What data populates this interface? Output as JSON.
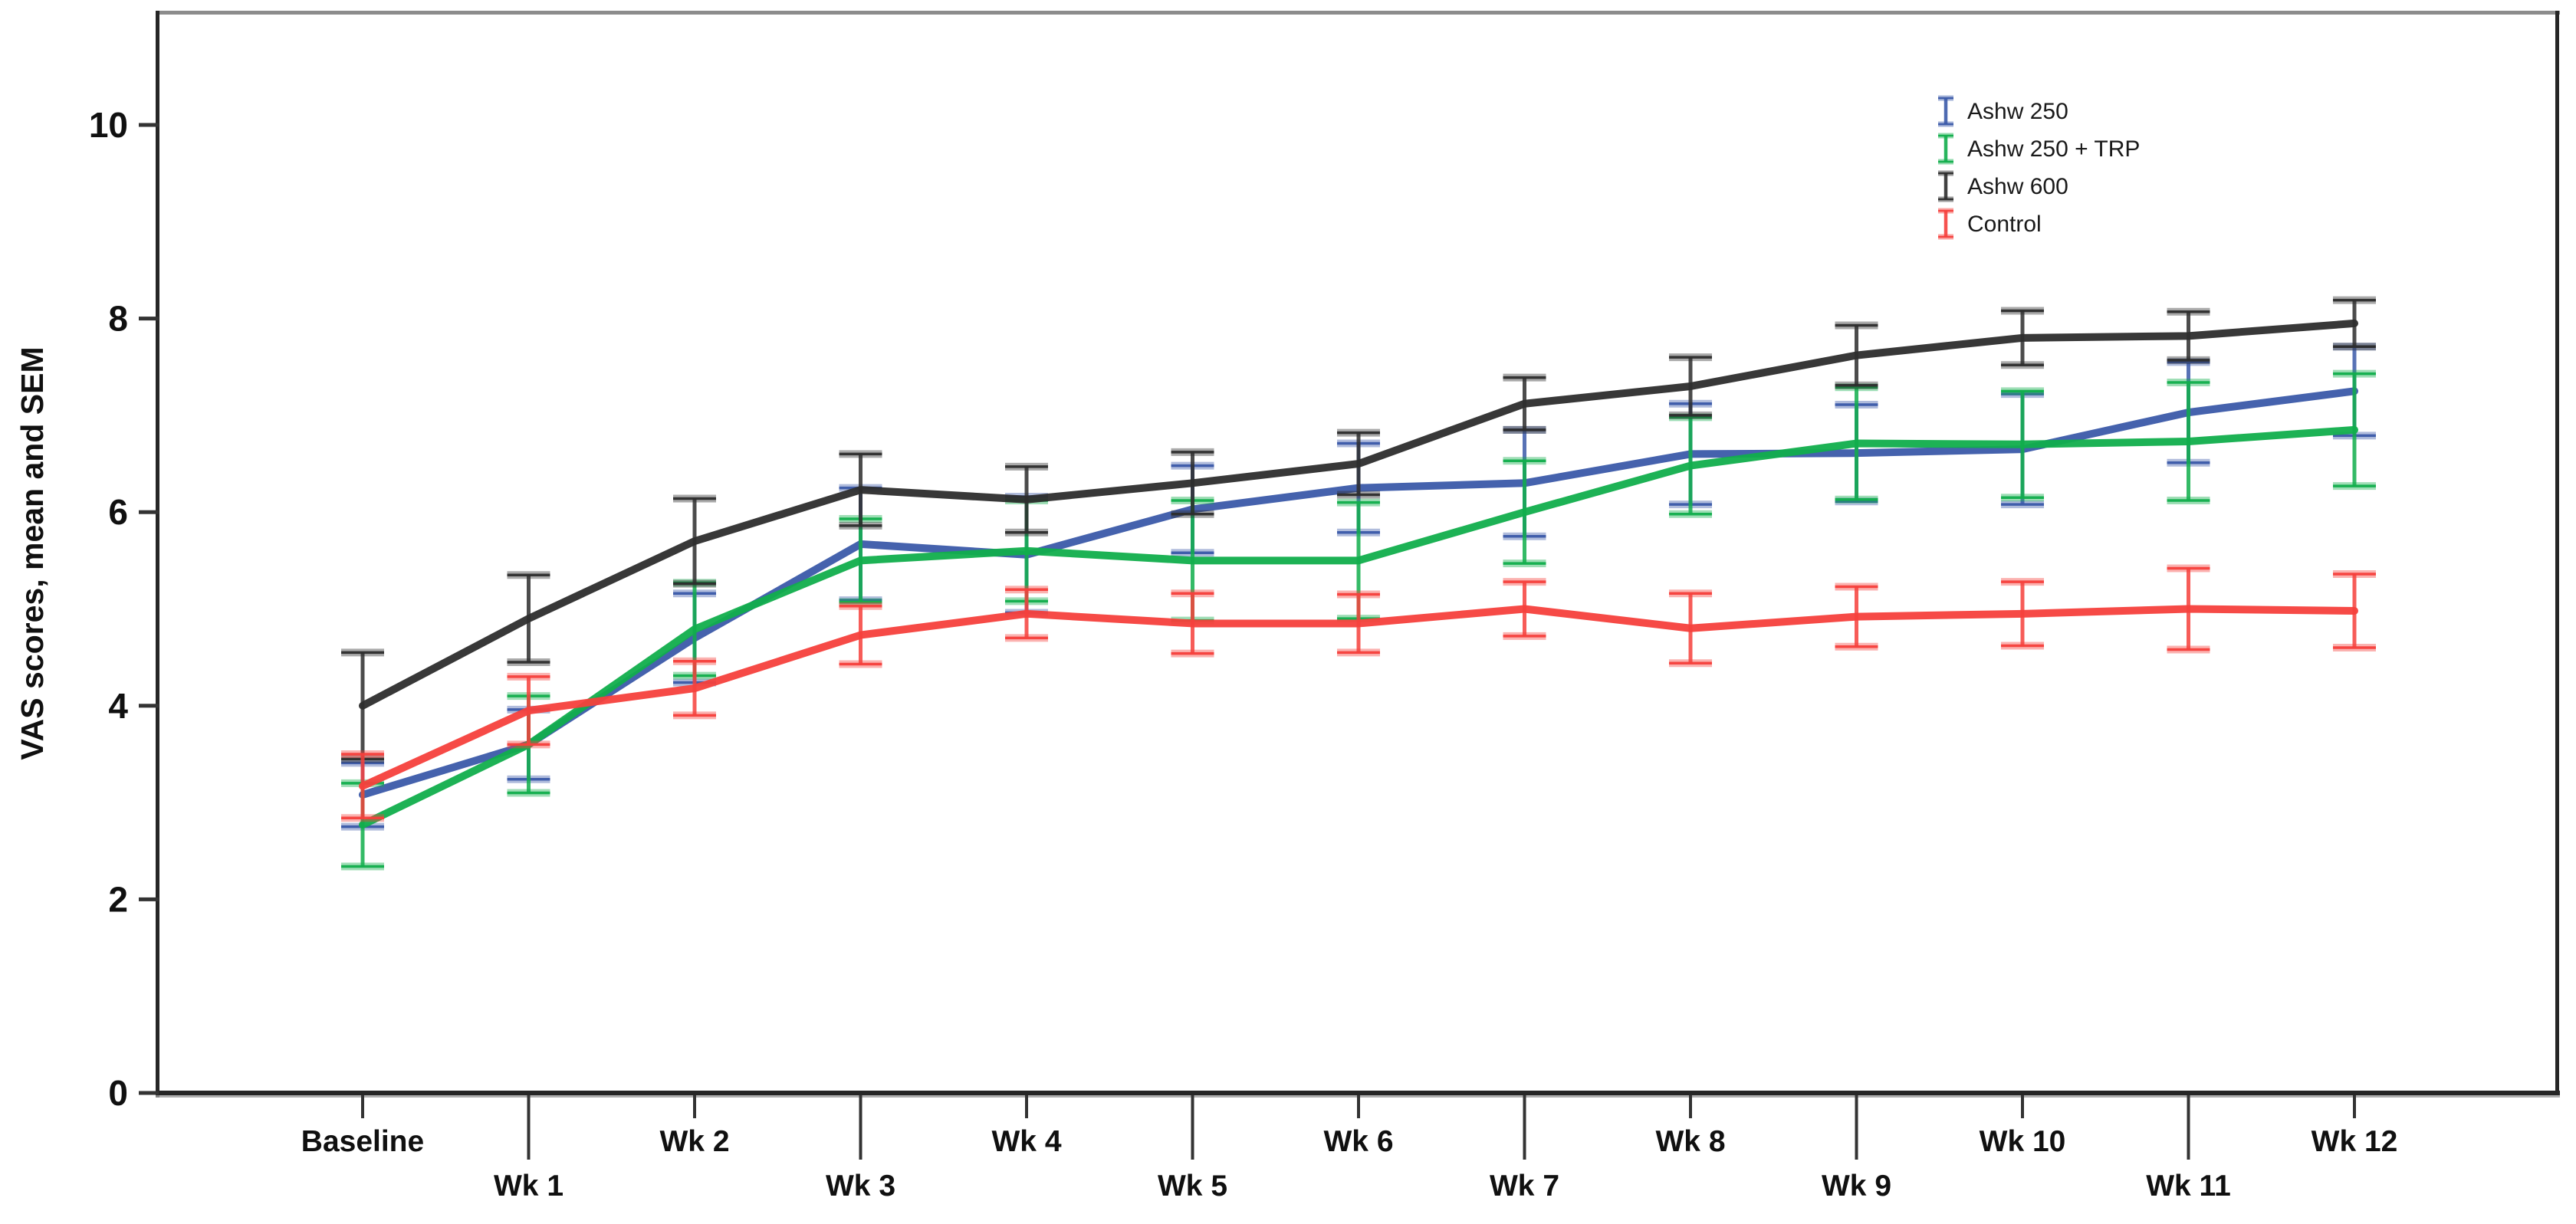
{
  "chart_data": {
    "type": "line",
    "title": "",
    "xlabel": "",
    "ylabel": "VAS scores, mean and SEM",
    "error_bar_type": "SEM",
    "legend_position": "top-right-inside",
    "grid": false,
    "ylim": [
      0,
      11.2
    ],
    "yticks": [
      0,
      2,
      4,
      6,
      8,
      10
    ],
    "ytick_labels": [
      "0",
      "2",
      "4",
      "6",
      "8",
      "10"
    ],
    "categories": [
      "Baseline",
      "Wk 1",
      "Wk 2",
      "Wk 3",
      "Wk 4",
      "Wk 5",
      "Wk 6",
      "Wk 7",
      "Wk 8",
      "Wk 9",
      "Wk 10",
      "Wk 11",
      "Wk 12"
    ],
    "series": [
      {
        "name": "Ashw 250",
        "color": "#3B5AA9",
        "means": [
          3.08,
          3.6,
          4.7,
          5.67,
          5.56,
          6.03,
          6.25,
          6.3,
          6.6,
          6.61,
          6.65,
          7.03,
          7.25
        ],
        "sems": [
          0.33,
          0.36,
          0.46,
          0.58,
          0.6,
          0.45,
          0.46,
          0.55,
          0.52,
          0.5,
          0.57,
          0.52,
          0.46
        ]
      },
      {
        "name": "Ashw 250 + TRP",
        "color": "#11AE4C",
        "means": [
          2.77,
          3.6,
          4.79,
          5.5,
          5.6,
          5.5,
          5.5,
          6.0,
          6.48,
          6.71,
          6.7,
          6.73,
          6.85
        ],
        "sems": [
          0.43,
          0.5,
          0.48,
          0.43,
          0.52,
          0.62,
          0.6,
          0.53,
          0.5,
          0.58,
          0.55,
          0.61,
          0.58
        ]
      },
      {
        "name": "Ashw 600",
        "color": "#2D2D2D",
        "means": [
          4.0,
          4.9,
          5.7,
          6.23,
          6.13,
          6.3,
          6.5,
          7.12,
          7.3,
          7.62,
          7.8,
          7.82,
          7.95
        ],
        "sems": [
          0.55,
          0.45,
          0.44,
          0.37,
          0.34,
          0.32,
          0.32,
          0.27,
          0.3,
          0.31,
          0.28,
          0.25,
          0.24
        ]
      },
      {
        "name": "Control",
        "color": "#F6403C",
        "means": [
          3.17,
          3.95,
          4.18,
          4.73,
          4.95,
          4.85,
          4.85,
          5.0,
          4.8,
          4.92,
          4.95,
          5.0,
          4.98
        ],
        "sems": [
          0.33,
          0.35,
          0.28,
          0.3,
          0.25,
          0.31,
          0.3,
          0.28,
          0.36,
          0.31,
          0.33,
          0.42,
          0.38
        ]
      }
    ],
    "frame_colors": {
      "top": "#8C8C8C",
      "right": "#262626",
      "left": "#262626",
      "bottom": "#262626",
      "bottom_shadow": "#9A9A9A",
      "tick": "#333333",
      "text": "#101010"
    }
  }
}
